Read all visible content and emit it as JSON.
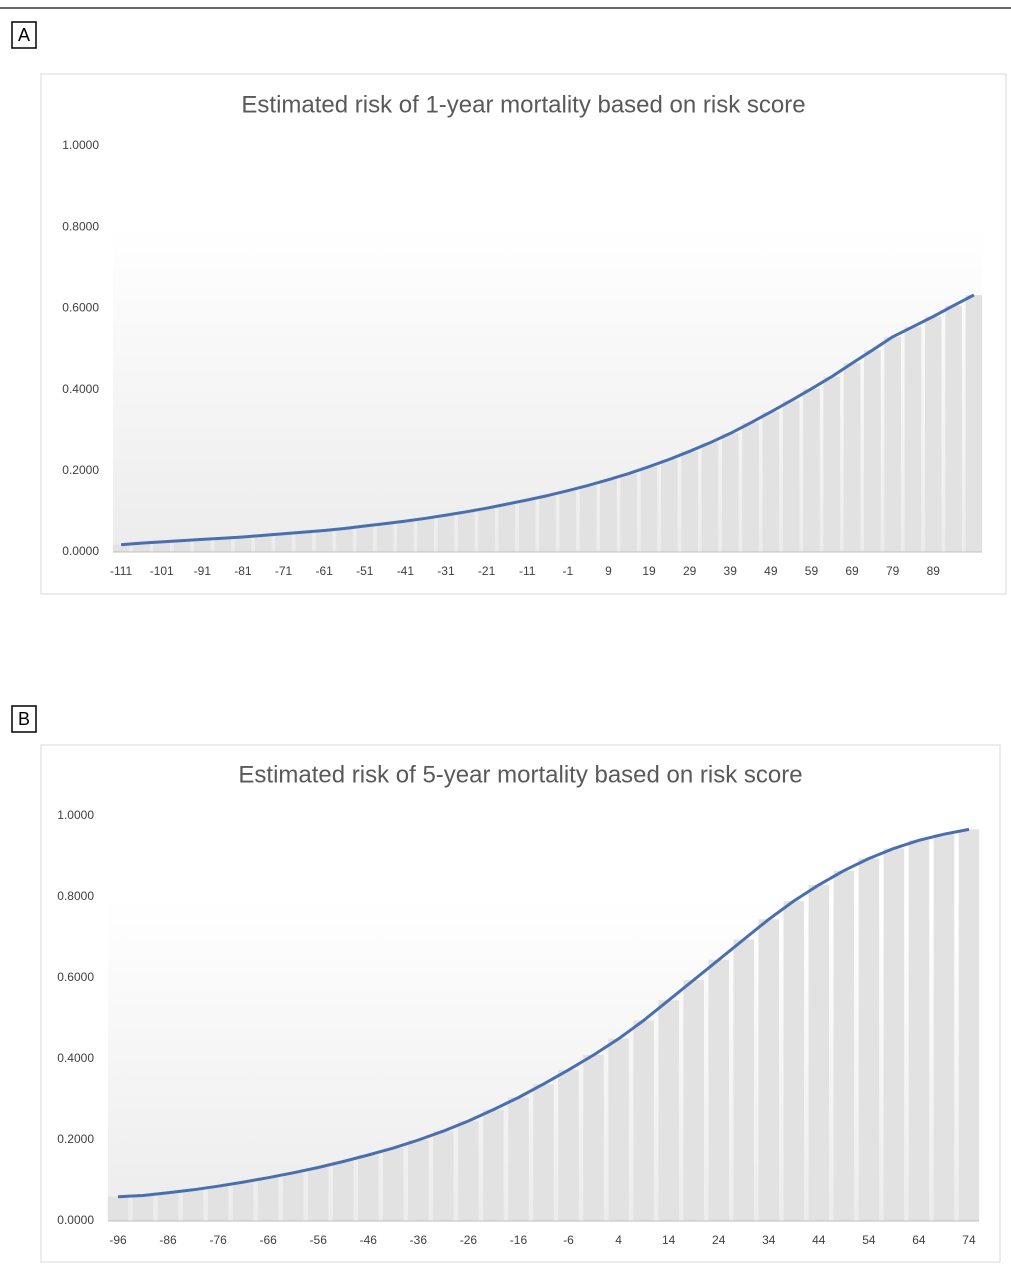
{
  "chart_data": [
    {
      "type": "combo",
      "panel_label": "A",
      "title": "Estimated risk of 1-year mortality based on risk score",
      "x": [
        -111,
        -106,
        -101,
        -96,
        -91,
        -86,
        -81,
        -76,
        -71,
        -66,
        -61,
        -56,
        -51,
        -46,
        -41,
        -36,
        -31,
        -26,
        -21,
        -16,
        -11,
        -6,
        -1,
        4,
        9,
        14,
        19,
        24,
        29,
        34,
        39,
        44,
        49,
        54,
        59,
        64,
        69,
        74,
        79,
        84,
        89,
        94,
        99
      ],
      "values": [
        0.018,
        0.022,
        0.025,
        0.028,
        0.031,
        0.034,
        0.037,
        0.041,
        0.045,
        0.049,
        0.053,
        0.058,
        0.064,
        0.07,
        0.076,
        0.083,
        0.091,
        0.099,
        0.108,
        0.118,
        0.128,
        0.139,
        0.151,
        0.164,
        0.178,
        0.193,
        0.21,
        0.228,
        0.248,
        0.269,
        0.292,
        0.318,
        0.345,
        0.373,
        0.402,
        0.432,
        0.465,
        0.497,
        0.53,
        0.555,
        0.58,
        0.607,
        0.633
      ],
      "color": "#4a6fae",
      "bar_color": "#e2e2e2",
      "xlim": [
        -113,
        101
      ],
      "xticks": [
        -111,
        -101,
        -91,
        -81,
        -71,
        -61,
        -51,
        -41,
        -31,
        -21,
        -11,
        -1,
        9,
        19,
        29,
        39,
        49,
        59,
        69,
        79,
        89
      ],
      "ylim": [
        0,
        1
      ],
      "yticks": [
        {
          "value": 0,
          "label": "0.0000"
        },
        {
          "value": 0.2,
          "label": "0.2000"
        },
        {
          "value": 0.4,
          "label": "0.4000"
        },
        {
          "value": 0.6,
          "label": "0.6000"
        },
        {
          "value": 0.8,
          "label": "0.8000"
        },
        {
          "value": 1,
          "label": "1.0000"
        }
      ]
    },
    {
      "type": "combo",
      "panel_label": "B",
      "title": "Estimated risk of 5-year mortality based on risk score",
      "x": [
        -96,
        -91,
        -86,
        -81,
        -76,
        -71,
        -66,
        -61,
        -56,
        -51,
        -46,
        -41,
        -36,
        -31,
        -26,
        -21,
        -16,
        -11,
        -6,
        -1,
        4,
        9,
        14,
        19,
        24,
        29,
        34,
        39,
        44,
        49,
        54,
        59,
        64,
        69,
        74
      ],
      "values": [
        0.06,
        0.063,
        0.07,
        0.077,
        0.086,
        0.096,
        0.107,
        0.119,
        0.132,
        0.147,
        0.163,
        0.18,
        0.2,
        0.222,
        0.247,
        0.275,
        0.305,
        0.338,
        0.373,
        0.41,
        0.45,
        0.495,
        0.545,
        0.595,
        0.645,
        0.695,
        0.745,
        0.79,
        0.83,
        0.865,
        0.895,
        0.92,
        0.94,
        0.955,
        0.967
      ],
      "color": "#4a6fae",
      "bar_color": "#e2e2e2",
      "xlim": [
        -98,
        76
      ],
      "xticks": [
        -96,
        -86,
        -76,
        -66,
        -56,
        -46,
        -36,
        -26,
        -16,
        -6,
        4,
        14,
        24,
        34,
        44,
        54,
        64,
        74
      ],
      "ylim": [
        0,
        1
      ],
      "yticks": [
        {
          "value": 0,
          "label": "0.0000"
        },
        {
          "value": 0.2,
          "label": "0.2000"
        },
        {
          "value": 0.4,
          "label": "0.4000"
        },
        {
          "value": 0.6,
          "label": "0.6000"
        },
        {
          "value": 0.8,
          "label": "0.8000"
        },
        {
          "value": 1,
          "label": "1.0000"
        }
      ]
    }
  ]
}
